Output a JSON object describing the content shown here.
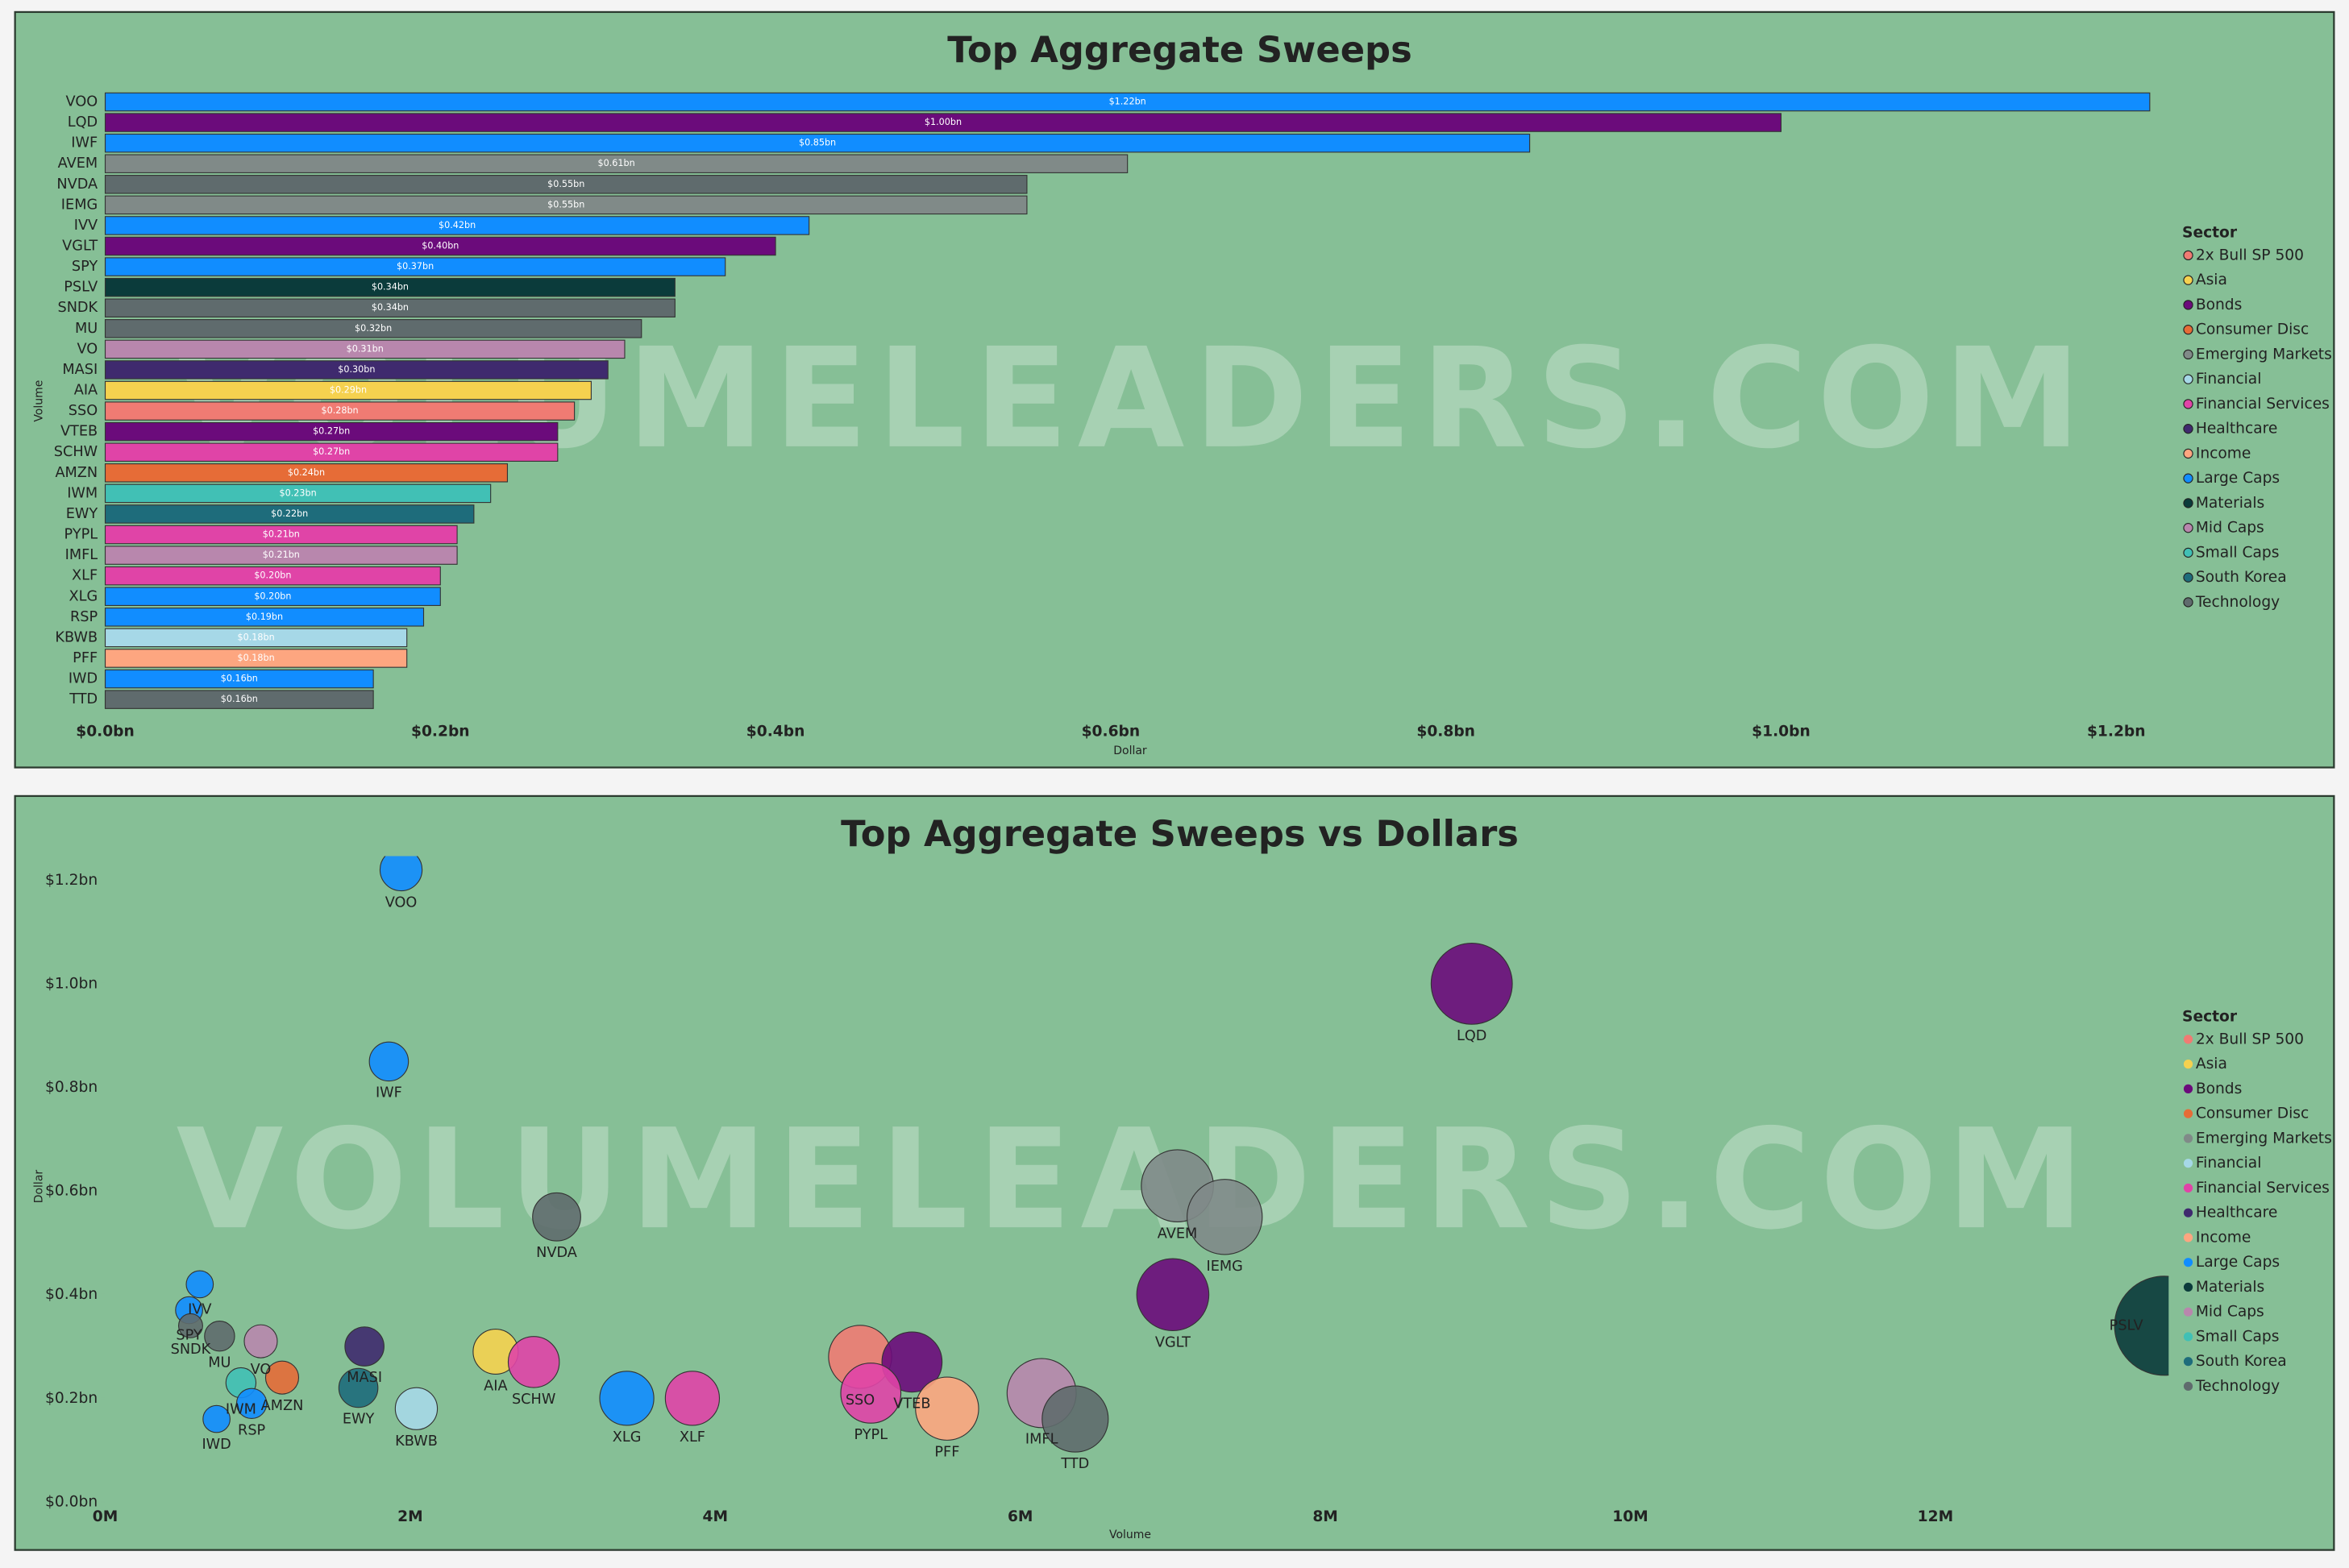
{
  "chart_data": [
    {
      "type": "bar",
      "title": "Top Aggregate Sweeps",
      "watermark": "VOLUMELEADERS.COM",
      "x_label": "Dollar",
      "y_label": "Volume",
      "categories": [
        "VOO",
        "LQD",
        "IWF",
        "AVEM",
        "NVDA",
        "IEMG",
        "IVV",
        "VGLT",
        "SPY",
        "PSLV",
        "SNDK",
        "MU",
        "VO",
        "MASI",
        "AIA",
        "SSO",
        "VTEB",
        "SCHW",
        "AMZN",
        "IWM",
        "EWY",
        "PYPL",
        "IMFL",
        "XLF",
        "XLG",
        "RSP",
        "KBWB",
        "PFF",
        "IWD",
        "TTD"
      ],
      "values": [
        1.22,
        1.0,
        0.85,
        0.61,
        0.55,
        0.55,
        0.42,
        0.4,
        0.37,
        0.34,
        0.34,
        0.32,
        0.31,
        0.3,
        0.29,
        0.28,
        0.27,
        0.27,
        0.24,
        0.23,
        0.22,
        0.21,
        0.21,
        0.2,
        0.2,
        0.19,
        0.18,
        0.18,
        0.16,
        0.16
      ],
      "value_labels": [
        "$1.22bn",
        "$1.00bn",
        "$0.85bn",
        "$0.61bn",
        "$0.55bn",
        "$0.55bn",
        "$0.42bn",
        "$0.40bn",
        "$0.37bn",
        "$0.34bn",
        "$0.34bn",
        "$0.32bn",
        "$0.31bn",
        "$0.30bn",
        "$0.29bn",
        "$0.28bn",
        "$0.27bn",
        "$0.27bn",
        "$0.24bn",
        "$0.23bn",
        "$0.22bn",
        "$0.21bn",
        "$0.21bn",
        "$0.20bn",
        "$0.20bn",
        "$0.19bn",
        "$0.18bn",
        "$0.18bn",
        "$0.16bn",
        "$0.16bn"
      ],
      "colors": [
        "#118dff",
        "#6b0b7b",
        "#118dff",
        "#808a88",
        "#5f6b6d",
        "#808a88",
        "#118dff",
        "#6b0b7b",
        "#118dff",
        "#0b3b3b",
        "#5f6b6d",
        "#5f6b6d",
        "#b887ad",
        "#3f2a6e",
        "#f5d14f",
        "#f07b73",
        "#6b0b7b",
        "#e044a7",
        "#e66c37",
        "#41c0b5",
        "#1e6c7b",
        "#e044a7",
        "#b887ad",
        "#e044a7",
        "#118dff",
        "#118dff",
        "#a6d8e7",
        "#fda680",
        "#118dff",
        "#5f6b6d"
      ],
      "xlim": [
        0,
        1.225
      ],
      "xticks": [
        {
          "value": 0,
          "label": "$0.0bn"
        },
        {
          "value": 0.2,
          "label": "$0.2bn"
        },
        {
          "value": 0.4,
          "label": "$0.4bn"
        },
        {
          "value": 0.6,
          "label": "$0.6bn"
        },
        {
          "value": 0.8,
          "label": "$0.8bn"
        },
        {
          "value": 1.0,
          "label": "$1.0bn"
        },
        {
          "value": 1.2,
          "label": "$1.2bn"
        }
      ],
      "legend_title": "Sector",
      "legend": [
        {
          "name": "2x Bull SP 500",
          "color": "#f07b73"
        },
        {
          "name": "Asia",
          "color": "#f5d14f"
        },
        {
          "name": "Bonds",
          "color": "#6b0b7b"
        },
        {
          "name": "Consumer Disc",
          "color": "#e66c37"
        },
        {
          "name": "Emerging Markets",
          "color": "#808a88"
        },
        {
          "name": "Financial",
          "color": "#a6d8e7"
        },
        {
          "name": "Financial Services",
          "color": "#e044a7"
        },
        {
          "name": "Healthcare",
          "color": "#3f2a6e"
        },
        {
          "name": "Income",
          "color": "#fda680"
        },
        {
          "name": "Large Caps",
          "color": "#118dff"
        },
        {
          "name": "Materials",
          "color": "#0b3b3b"
        },
        {
          "name": "Mid Caps",
          "color": "#b887ad"
        },
        {
          "name": "Small Caps",
          "color": "#41c0b5"
        },
        {
          "name": "South Korea",
          "color": "#1e6c7b"
        },
        {
          "name": "Technology",
          "color": "#5f6b6d"
        }
      ]
    },
    {
      "type": "scatter",
      "title": "Top Aggregate Sweeps vs Dollars",
      "watermark": "VOLUMELEADERS.COM",
      "x_label": "Volume",
      "y_label": "Dollar",
      "labels": [
        "VOO",
        "LQD",
        "IWF",
        "AVEM",
        "IEMG",
        "NVDA",
        "VGLT",
        "PSLV",
        "IVV",
        "SPY",
        "SNDK",
        "MU",
        "VO",
        "MASI",
        "AIA",
        "SCHW",
        "SSO",
        "VTEB",
        "AMZN",
        "IWM",
        "EWY",
        "PYPL",
        "IMFL",
        "XLF",
        "XLG",
        "RSP",
        "KBWB",
        "PFF",
        "IWD",
        "TTD"
      ],
      "x": [
        1.94,
        8.96,
        1.86,
        7.03,
        7.34,
        2.96,
        7.0,
        13.5,
        0.62,
        0.55,
        0.56,
        0.75,
        1.02,
        1.7,
        2.56,
        2.81,
        4.95,
        5.29,
        1.16,
        0.89,
        1.66,
        5.02,
        6.14,
        3.85,
        3.42,
        0.96,
        2.04,
        5.52,
        0.73,
        6.36
      ],
      "values": [
        1.22,
        1.0,
        0.85,
        0.61,
        0.55,
        0.55,
        0.4,
        0.34,
        0.42,
        0.37,
        0.34,
        0.32,
        0.31,
        0.3,
        0.29,
        0.27,
        0.28,
        0.27,
        0.24,
        0.23,
        0.22,
        0.21,
        0.21,
        0.2,
        0.2,
        0.19,
        0.18,
        0.18,
        0.16,
        0.16
      ],
      "sizes": [
        14,
        27,
        13,
        24,
        25,
        16,
        24,
        33,
        9,
        9,
        8,
        10,
        11,
        13,
        15,
        17,
        21,
        20,
        11,
        10,
        13,
        20,
        23,
        18,
        18,
        10,
        14,
        21,
        9,
        22
      ],
      "colors": [
        "#118dff",
        "#6b0b7b",
        "#118dff",
        "#808a88",
        "#808a88",
        "#5f6b6d",
        "#6b0b7b",
        "#0b3b3b",
        "#118dff",
        "#118dff",
        "#5f6b6d",
        "#5f6b6d",
        "#b887ad",
        "#3f2a6e",
        "#f5d14f",
        "#e044a7",
        "#f07b73",
        "#6b0b7b",
        "#e66c37",
        "#41c0b5",
        "#1e6c7b",
        "#e044a7",
        "#b887ad",
        "#e044a7",
        "#118dff",
        "#118dff",
        "#a6d8e7",
        "#fda680",
        "#118dff",
        "#5f6b6d"
      ],
      "xlim": [
        0,
        13.5
      ],
      "ylim": [
        0,
        1.2
      ],
      "xticks": [
        {
          "value": 0,
          "label": "0M"
        },
        {
          "value": 2,
          "label": "2M"
        },
        {
          "value": 4,
          "label": "4M"
        },
        {
          "value": 6,
          "label": "6M"
        },
        {
          "value": 8,
          "label": "8M"
        },
        {
          "value": 10,
          "label": "10M"
        },
        {
          "value": 12,
          "label": "12M"
        }
      ],
      "yticks": [
        {
          "value": 0,
          "label": "$0.0bn"
        },
        {
          "value": 0.2,
          "label": "$0.2bn"
        },
        {
          "value": 0.4,
          "label": "$0.4bn"
        },
        {
          "value": 0.6,
          "label": "$0.6bn"
        },
        {
          "value": 0.8,
          "label": "$0.8bn"
        },
        {
          "value": 1.0,
          "label": "$1.0bn"
        },
        {
          "value": 1.2,
          "label": "$1.2bn"
        }
      ],
      "legend_title": "Sector",
      "legend": [
        {
          "name": "2x Bull SP 500",
          "color": "#f07b73"
        },
        {
          "name": "Asia",
          "color": "#f5d14f"
        },
        {
          "name": "Bonds",
          "color": "#6b0b7b"
        },
        {
          "name": "Consumer Disc",
          "color": "#e66c37"
        },
        {
          "name": "Emerging Markets",
          "color": "#808a88"
        },
        {
          "name": "Financial",
          "color": "#a6d8e7"
        },
        {
          "name": "Financial Services",
          "color": "#e044a7"
        },
        {
          "name": "Healthcare",
          "color": "#3f2a6e"
        },
        {
          "name": "Income",
          "color": "#fda680"
        },
        {
          "name": "Large Caps",
          "color": "#118dff"
        },
        {
          "name": "Materials",
          "color": "#0b3b3b"
        },
        {
          "name": "Mid Caps",
          "color": "#b887ad"
        },
        {
          "name": "Small Caps",
          "color": "#41c0b5"
        },
        {
          "name": "South Korea",
          "color": "#1e6c7b"
        },
        {
          "name": "Technology",
          "color": "#5f6b6d"
        }
      ]
    }
  ]
}
